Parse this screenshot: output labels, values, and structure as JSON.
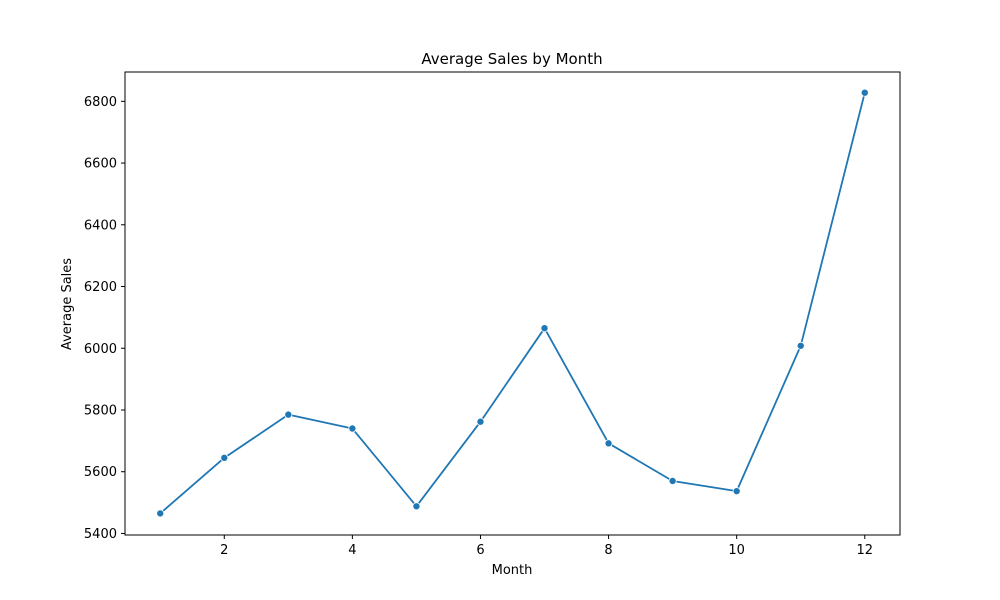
{
  "chart_data": {
    "type": "line",
    "title": "Average Sales by Month",
    "xlabel": "Month",
    "ylabel": "Average Sales",
    "x": [
      1,
      2,
      3,
      4,
      5,
      6,
      7,
      8,
      9,
      10,
      11,
      12
    ],
    "series": [
      {
        "values": [
          5465,
          5645,
          5785,
          5740,
          5488,
          5762,
          6065,
          5692,
          5570,
          5537,
          6008,
          6828
        ],
        "color": "#1f77b4",
        "marker": "circle"
      }
    ],
    "xlim": [
      0.45,
      12.55
    ],
    "ylim": [
      5395,
      6895
    ],
    "xticks": [
      2,
      4,
      6,
      8,
      10,
      12
    ],
    "yticks": [
      5400,
      5600,
      5800,
      6000,
      6200,
      6400,
      6600,
      6800
    ],
    "grid": false
  }
}
